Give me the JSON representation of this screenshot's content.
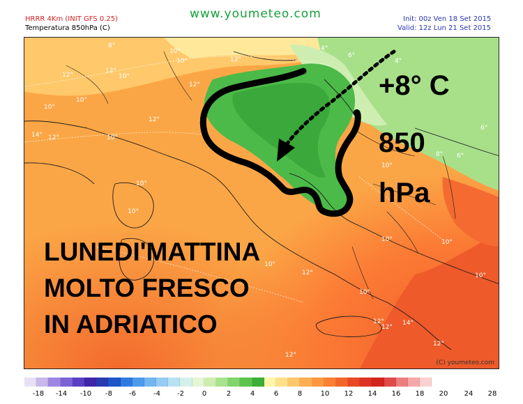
{
  "header": {
    "model": "HRRR 4Km (INIT GFS 0.25)",
    "variable": "Temperatura 850hPa (C)",
    "site": "www.youmeteo.com",
    "init": "Init: 00z Ven 18 Set 2015",
    "valid": "Valid: 12z Lun 21 Set 2015"
  },
  "annotations": {
    "temp_value": "+8° C",
    "pressure_level": "850",
    "pressure_unit": "hPa",
    "caption_line1": "LUNEDI'MATTINA",
    "caption_line2": "MOLTO FRESCO",
    "caption_line3": "IN ADRIATICO"
  },
  "map_labels": [
    "8°",
    "10°",
    "4°",
    "6°",
    "4°",
    "12°",
    "12°",
    "12°",
    "10°",
    "10°",
    "12°",
    "10°",
    "10°",
    "12°",
    "14°",
    "10°",
    "12°",
    "10°",
    "10°",
    "10°",
    "6°",
    "6°",
    "8°",
    "10°",
    "10°",
    "10°",
    "10°",
    "12°",
    "10°",
    "12°",
    "12°",
    "14°",
    "12°",
    "12°"
  ],
  "credit": "(C) youmeteo.com",
  "legend": {
    "colors": [
      "#e8e0f4",
      "#c8b8ec",
      "#9c86e2",
      "#7a62d4",
      "#5a3fc4",
      "#3e26a8",
      "#2a3ab0",
      "#1e56c8",
      "#2f7ae0",
      "#4d9aea",
      "#72b6f0",
      "#96ccf4",
      "#b8e2f2",
      "#d4f0ea",
      "#e4f6d4",
      "#cdeeb0",
      "#a9e28c",
      "#80d46a",
      "#5cc44c",
      "#3aae36",
      "#fff4a8",
      "#ffe08a",
      "#ffc76a",
      "#ffae52",
      "#ff9840",
      "#fb7f34",
      "#f4652a",
      "#e84824",
      "#de3222",
      "#d4241e",
      "#e04a4a",
      "#ee7e7e",
      "#f6a8a8",
      "#fbd0d0"
    ],
    "ticks": [
      "-18",
      "-14",
      "-10",
      "-8",
      "-6",
      "-4",
      "-2",
      "0",
      "2",
      "4",
      "6",
      "8",
      "10",
      "12",
      "14",
      "16",
      "18",
      "20",
      "24",
      "28"
    ]
  }
}
